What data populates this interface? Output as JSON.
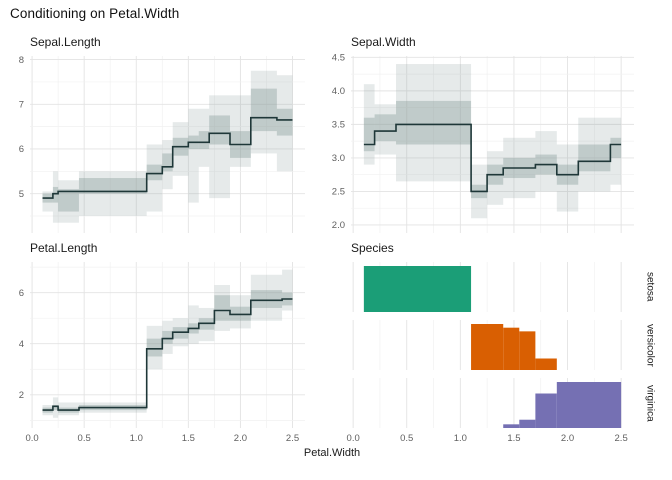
{
  "title": "Conditioning on Petal.Width",
  "x_axis": {
    "label": "Petal.Width",
    "tick_values": [
      0,
      0.5,
      1.0,
      1.5,
      2.0,
      2.5
    ],
    "tick_labels": [
      "0.0",
      "0.5",
      "1.0",
      "1.5",
      "2.0",
      "2.5"
    ],
    "minor_values": [
      0.25,
      0.75,
      1.25,
      1.75,
      2.25
    ],
    "xlim": [
      -0.02,
      2.62
    ]
  },
  "colors": {
    "median_line": "#1e3738",
    "band_rgb": "141,160,158",
    "band_outer_alpha": 0.22,
    "band_inner_alpha": 0.42,
    "grid_major": "#e3e3e3",
    "grid_minor": "#f1f1f1",
    "tick_text": "#606060"
  },
  "chart_data": [
    {
      "type": "line",
      "panel": "Sepal.Length",
      "step": true,
      "x_breaks": [
        0.1,
        0.2,
        0.25,
        0.45,
        1.1,
        1.25,
        1.35,
        1.5,
        1.6,
        1.7,
        1.9,
        2.1,
        2.35,
        2.5
      ],
      "median": [
        4.9,
        5.0,
        5.05,
        5.05,
        5.45,
        5.6,
        6.05,
        6.15,
        6.15,
        6.35,
        6.1,
        6.7,
        6.65
      ],
      "band_inner": {
        "lo": [
          4.8,
          4.8,
          4.6,
          5.0,
          5.3,
          5.5,
          5.85,
          6.0,
          6.0,
          6.1,
          5.8,
          6.4,
          6.3
        ],
        "hi": [
          5.0,
          5.15,
          5.1,
          5.35,
          5.65,
          5.9,
          6.25,
          6.3,
          6.4,
          6.75,
          6.4,
          7.35,
          6.9
        ]
      },
      "band_outer": {
        "lo": [
          4.6,
          4.35,
          4.35,
          4.5,
          4.6,
          5.1,
          5.4,
          4.8,
          5.6,
          4.9,
          5.6,
          5.9,
          5.5
        ],
        "hi": [
          5.05,
          5.5,
          5.3,
          5.5,
          6.1,
          6.2,
          6.6,
          6.9,
          6.9,
          7.2,
          7.2,
          7.75,
          7.65
        ]
      },
      "ytick_values": [
        5,
        6,
        7,
        8
      ],
      "ytick_labels": [
        "5",
        "6",
        "7",
        "8"
      ],
      "ytick_minor": [
        4.5,
        5.5,
        6.5,
        7.5
      ],
      "ylim": [
        4.12,
        8.08
      ]
    },
    {
      "type": "line",
      "panel": "Sepal.Width",
      "step": true,
      "x_breaks": [
        0.1,
        0.2,
        0.4,
        1.1,
        1.25,
        1.4,
        1.7,
        1.9,
        2.1,
        2.4,
        2.5
      ],
      "median": [
        3.2,
        3.4,
        3.5,
        2.5,
        2.75,
        2.85,
        2.9,
        2.75,
        2.95,
        3.2
      ],
      "band_inner": {
        "lo": [
          3.1,
          3.25,
          3.2,
          2.4,
          2.6,
          2.7,
          2.75,
          2.6,
          2.8,
          3.0
        ],
        "hi": [
          3.6,
          3.65,
          3.85,
          2.6,
          2.9,
          3.0,
          3.05,
          2.9,
          3.2,
          3.3
        ]
      },
      "band_outer": {
        "lo": [
          2.9,
          3.05,
          2.65,
          2.1,
          2.3,
          2.4,
          2.5,
          2.2,
          2.5,
          2.6
        ],
        "hi": [
          4.1,
          3.8,
          4.4,
          2.9,
          3.1,
          3.3,
          3.4,
          3.2,
          3.6,
          3.6
        ]
      },
      "ytick_values": [
        2.0,
        2.5,
        3.0,
        3.5,
        4.0,
        4.5
      ],
      "ytick_labels": [
        "2.0",
        "2.5",
        "3.0",
        "3.5",
        "4.0",
        "4.5"
      ],
      "ytick_minor": [
        2.25,
        2.75,
        3.25,
        3.75,
        4.25
      ],
      "ylim": [
        1.88,
        4.52
      ]
    },
    {
      "type": "line",
      "panel": "Petal.Length",
      "step": true,
      "x_breaks": [
        0.1,
        0.2,
        0.25,
        0.45,
        1.1,
        1.25,
        1.35,
        1.5,
        1.6,
        1.75,
        1.9,
        2.1,
        2.4,
        2.5
      ],
      "median": [
        1.4,
        1.55,
        1.4,
        1.5,
        3.8,
        4.2,
        4.45,
        4.6,
        4.8,
        5.3,
        5.15,
        5.7,
        5.75
      ],
      "band_inner": {
        "lo": [
          1.3,
          1.4,
          1.3,
          1.4,
          3.5,
          4.0,
          4.2,
          4.4,
          4.55,
          4.9,
          4.9,
          5.4,
          5.5
        ],
        "hi": [
          1.5,
          1.6,
          1.5,
          1.6,
          4.2,
          4.5,
          4.65,
          4.8,
          5.0,
          5.9,
          5.45,
          6.1,
          6.0
        ]
      },
      "band_outer": {
        "lo": [
          1.2,
          1.1,
          1.2,
          1.3,
          3.0,
          3.6,
          3.9,
          4.0,
          4.1,
          4.5,
          4.6,
          4.9,
          5.3
        ],
        "hi": [
          1.6,
          1.9,
          1.7,
          1.7,
          4.7,
          4.9,
          5.0,
          5.5,
          5.4,
          6.3,
          5.9,
          6.7,
          6.9
        ]
      },
      "ytick_values": [
        2,
        4,
        6
      ],
      "ytick_labels": [
        "2",
        "4",
        "6"
      ],
      "ytick_minor": [
        1,
        3,
        5,
        7
      ],
      "ylim": [
        0.7,
        7.2
      ]
    },
    {
      "type": "bar",
      "panel": "Species",
      "facets": [
        {
          "label": "setosa",
          "color": "#1b9e77",
          "segments": [
            {
              "x0": 0.1,
              "x1": 1.1,
              "h": 1.0
            }
          ]
        },
        {
          "label": "versicolor",
          "color": "#d95f02",
          "segments": [
            {
              "x0": 1.1,
              "x1": 1.4,
              "h": 1.0
            },
            {
              "x0": 1.4,
              "x1": 1.55,
              "h": 0.92
            },
            {
              "x0": 1.55,
              "x1": 1.7,
              "h": 0.84
            },
            {
              "x0": 1.7,
              "x1": 1.9,
              "h": 0.25
            }
          ]
        },
        {
          "label": "virginica",
          "color": "#7570b3",
          "segments": [
            {
              "x0": 1.4,
              "x1": 1.55,
              "h": 0.08
            },
            {
              "x0": 1.55,
              "x1": 1.7,
              "h": 0.18
            },
            {
              "x0": 1.7,
              "x1": 1.9,
              "h": 0.75
            },
            {
              "x0": 1.9,
              "x1": 2.5,
              "h": 1.0
            }
          ]
        }
      ]
    }
  ]
}
